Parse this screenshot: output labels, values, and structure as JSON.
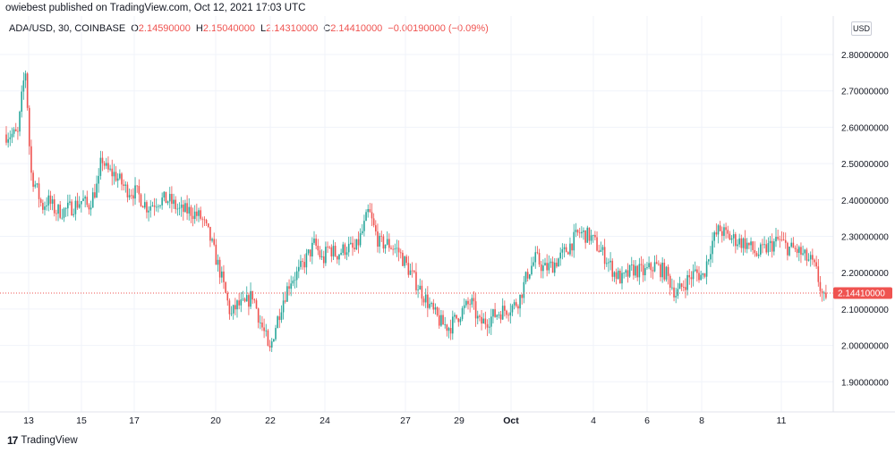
{
  "header": {
    "text": "owiebest published on TradingView.com, Oct 12, 2021 17:03 UTC"
  },
  "legend": {
    "symbol": "ADA/USD, 30, COINBASE",
    "open_key": "O",
    "open": "2.14590000",
    "high_key": "H",
    "high": "2.15040000",
    "low_key": "L",
    "low": "2.14310000",
    "close_key": "C",
    "close": "2.14410000",
    "change": "−0.00190000 (−0.09%)"
  },
  "price_axis": {
    "currency": "USD",
    "ticks": [
      "2.80000000",
      "2.70000000",
      "2.60000000",
      "2.50000000",
      "2.40000000",
      "2.30000000",
      "2.20000000",
      "2.10000000",
      "2.00000000",
      "1.90000000"
    ],
    "last_price_label": "2.14410000"
  },
  "time_axis": {
    "labels": [
      "13",
      "15",
      "17",
      "20",
      "22",
      "24",
      "27",
      "29",
      "Oct",
      "4",
      "6",
      "8",
      "11"
    ]
  },
  "brand": {
    "name": "TradingView",
    "logo": "17"
  },
  "colors": {
    "up": "#26a69a",
    "down": "#ef5350",
    "grid": "#f0f3fa",
    "last_price": "#ef5350"
  },
  "chart_data": {
    "type": "candlestick",
    "symbol": "ADA/USD",
    "interval": "30",
    "exchange": "COINBASE",
    "ylim": [
      1.82,
      2.9
    ],
    "last_close": 2.1441,
    "path": [
      [
        12.6,
        2.58
      ],
      [
        12.8,
        2.72
      ],
      [
        12.9,
        2.76
      ],
      [
        13.0,
        2.58
      ],
      [
        13.1,
        2.47
      ],
      [
        13.3,
        2.43
      ],
      [
        13.5,
        2.38
      ],
      [
        13.7,
        2.4
      ],
      [
        14.0,
        2.37
      ],
      [
        14.3,
        2.37
      ],
      [
        14.6,
        2.38
      ],
      [
        15.0,
        2.4
      ],
      [
        15.2,
        2.38
      ],
      [
        15.6,
        2.45
      ],
      [
        15.7,
        2.52
      ],
      [
        15.9,
        2.48
      ],
      [
        16.2,
        2.47
      ],
      [
        16.6,
        2.43
      ],
      [
        17.0,
        2.42
      ],
      [
        17.4,
        2.38
      ],
      [
        17.8,
        2.4
      ],
      [
        18.2,
        2.4
      ],
      [
        18.6,
        2.37
      ],
      [
        19.0,
        2.37
      ],
      [
        19.4,
        2.35
      ],
      [
        19.7,
        2.3
      ],
      [
        19.9,
        2.25
      ],
      [
        20.1,
        2.2
      ],
      [
        20.3,
        2.14
      ],
      [
        20.5,
        2.08
      ],
      [
        20.7,
        2.11
      ],
      [
        21.0,
        2.11
      ],
      [
        21.3,
        2.14
      ],
      [
        21.6,
        2.06
      ],
      [
        21.8,
        2.02
      ],
      [
        21.9,
        1.97
      ],
      [
        22.1,
        2.04
      ],
      [
        22.4,
        2.12
      ],
      [
        22.7,
        2.18
      ],
      [
        23.0,
        2.2
      ],
      [
        23.3,
        2.24
      ],
      [
        23.6,
        2.28
      ],
      [
        23.9,
        2.23
      ],
      [
        24.1,
        2.27
      ],
      [
        24.4,
        2.25
      ],
      [
        24.8,
        2.27
      ],
      [
        25.1,
        2.26
      ],
      [
        25.4,
        2.32
      ],
      [
        25.6,
        2.37
      ],
      [
        25.8,
        2.32
      ],
      [
        26.0,
        2.28
      ],
      [
        26.3,
        2.28
      ],
      [
        26.7,
        2.26
      ],
      [
        27.0,
        2.22
      ],
      [
        27.3,
        2.18
      ],
      [
        27.7,
        2.13
      ],
      [
        28.0,
        2.09
      ],
      [
        28.3,
        2.06
      ],
      [
        28.6,
        2.05
      ],
      [
        29.0,
        2.09
      ],
      [
        29.4,
        2.12
      ],
      [
        29.7,
        2.06
      ],
      [
        30.0,
        2.07
      ],
      [
        30.4,
        2.09
      ],
      [
        30.7,
        2.1
      ],
      [
        31.0,
        2.11
      ],
      [
        31.2,
        2.13
      ],
      [
        31.5,
        2.2
      ],
      [
        31.8,
        2.24
      ],
      [
        32.1,
        2.21
      ],
      [
        32.4,
        2.22
      ],
      [
        32.8,
        2.25
      ],
      [
        33.1,
        2.28
      ],
      [
        33.4,
        2.31
      ],
      [
        33.8,
        2.3
      ],
      [
        34.1,
        2.27
      ],
      [
        34.4,
        2.24
      ],
      [
        34.7,
        2.2
      ],
      [
        35.0,
        2.18
      ],
      [
        35.4,
        2.21
      ],
      [
        35.8,
        2.2
      ],
      [
        36.2,
        2.22
      ],
      [
        36.6,
        2.2
      ],
      [
        37.0,
        2.14
      ],
      [
        37.4,
        2.18
      ],
      [
        37.7,
        2.2
      ],
      [
        38.0,
        2.19
      ],
      [
        38.3,
        2.28
      ],
      [
        38.6,
        2.32
      ],
      [
        38.9,
        2.3
      ],
      [
        39.2,
        2.29
      ],
      [
        39.6,
        2.28
      ],
      [
        40.0,
        2.25
      ],
      [
        40.4,
        2.27
      ],
      [
        40.8,
        2.29
      ],
      [
        41.1,
        2.27
      ],
      [
        41.5,
        2.26
      ],
      [
        41.8,
        2.24
      ],
      [
        42.0,
        2.23
      ],
      [
        42.2,
        2.2
      ],
      [
        42.4,
        2.14
      ],
      [
        42.6,
        2.1
      ],
      [
        42.8,
        2.12
      ],
      [
        42.9,
        2.14
      ]
    ]
  }
}
